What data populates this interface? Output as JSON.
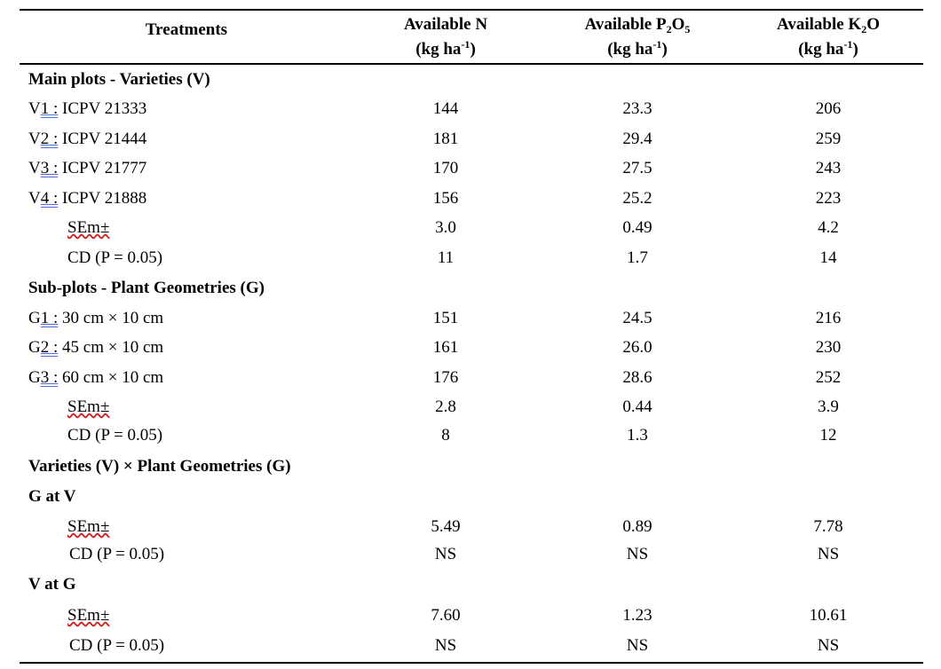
{
  "header": {
    "treatments": "Treatments",
    "avail_n": "Available N",
    "avail_p_pre": "Available P",
    "avail_p_sub1": "2",
    "avail_p_mid": "O",
    "avail_p_sub2": "5",
    "avail_k_pre": "Available K",
    "avail_k_sub": "2",
    "avail_k_post": "O",
    "unit_pre": "(kg ha",
    "unit_sup": "-1",
    "unit_post": ")"
  },
  "rows": [
    {
      "type": "section",
      "label": "Main plots - Varieties (V)"
    },
    {
      "type": "item",
      "prefix": "V",
      "code": "1 :",
      "label": " ICPV 21333",
      "n": "144",
      "p": "23.3",
      "k": "206"
    },
    {
      "type": "item",
      "prefix": "V",
      "code": "2 :",
      "label": " ICPV 21444",
      "n": "181",
      "p": "29.4",
      "k": "259"
    },
    {
      "type": "item",
      "prefix": "V",
      "code": "3 :",
      "label": " ICPV 21777",
      "n": "170",
      "p": "27.5",
      "k": "243"
    },
    {
      "type": "item",
      "prefix": "V",
      "code": "4 :",
      "label": " ICPV 21888",
      "n": "156",
      "p": "25.2",
      "k": "223"
    },
    {
      "type": "sem",
      "label": "SEm±",
      "n": "3.0",
      "p": "0.49",
      "k": "4.2"
    },
    {
      "type": "cd",
      "label": "CD (P = 0.05)",
      "n": "11",
      "p": "1.7",
      "k": "14"
    },
    {
      "type": "section",
      "label": "Sub-plots - Plant Geometries (G)"
    },
    {
      "type": "item",
      "prefix": "G",
      "code": "1 :",
      "label": " 30 cm × 10 cm",
      "n": "151",
      "p": "24.5",
      "k": "216"
    },
    {
      "type": "item",
      "prefix": "G",
      "code": "2 :",
      "label": " 45 cm × 10 cm",
      "n": "161",
      "p": "26.0",
      "k": "230"
    },
    {
      "type": "item",
      "prefix": "G",
      "code": "3 :",
      "label": " 60 cm × 10 cm",
      "n": "176",
      "p": "28.6",
      "k": "252"
    },
    {
      "type": "sem",
      "label": "SEm±",
      "n": "2.8",
      "p": "0.44",
      "k": "3.9"
    },
    {
      "type": "cd",
      "label": "CD (P = 0.05)",
      "n": "8",
      "p": "1.3",
      "k": "12"
    },
    {
      "type": "section",
      "label": "Varieties (V) × Plant Geometries (G)"
    },
    {
      "type": "section",
      "label": "G at V"
    },
    {
      "type": "sem",
      "label": "SEm±",
      "n": "5.49",
      "p": "0.89",
      "k": "7.78"
    },
    {
      "type": "cd2",
      "label": "CD (P = 0.05)",
      "n": "NS",
      "p": "NS",
      "k": "NS"
    },
    {
      "type": "section",
      "label": "V at G"
    },
    {
      "type": "sem",
      "label": "SEm±",
      "n": "7.60",
      "p": "1.23",
      "k": "10.61"
    },
    {
      "type": "cd2",
      "label": "CD (P = 0.05)",
      "n": "NS",
      "p": "NS",
      "k": "NS"
    }
  ]
}
